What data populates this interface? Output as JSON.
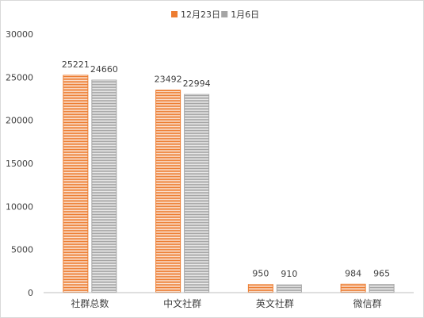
{
  "chart_data": {
    "type": "bar",
    "categories": [
      "社群总数",
      "中文社群",
      "英文社群",
      "微信群"
    ],
    "series": [
      {
        "name": "12月23日",
        "values": [
          25221,
          23492,
          950,
          984
        ],
        "color": "#ED7D31"
      },
      {
        "name": "1月6日",
        "values": [
          24660,
          22994,
          910,
          965
        ],
        "color": "#A5A5A5"
      }
    ],
    "ylim": [
      0,
      30000
    ],
    "yticks": [
      0,
      5000,
      10000,
      15000,
      20000,
      25000,
      30000
    ],
    "data_labels": [
      [
        "25221",
        "23492",
        "950",
        "984"
      ],
      [
        "24660",
        "22994",
        "910",
        "965"
      ]
    ],
    "grid": false,
    "legend_position": "top-center",
    "bar_pattern": "horizontal-lines"
  }
}
